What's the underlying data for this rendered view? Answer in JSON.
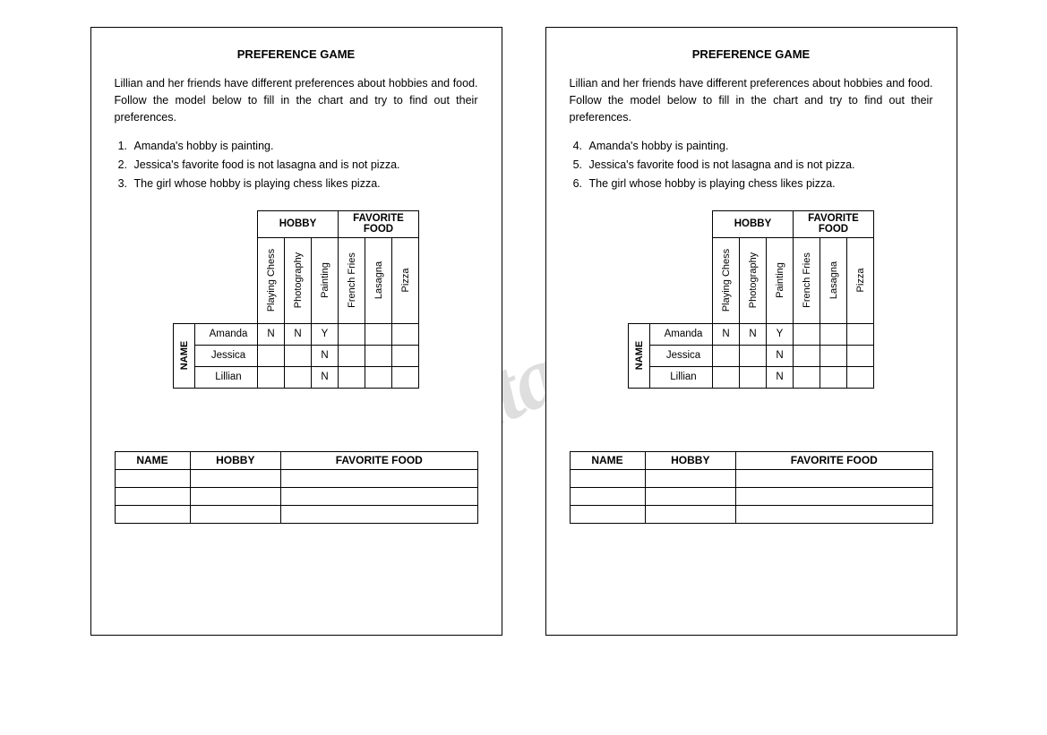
{
  "watermark": "ESLprintables.com",
  "cards": [
    {
      "title": "PREFERENCE GAME",
      "intro": "Lillian and her friends have different preferences about hobbies and food. Follow the model below to fill in the chart and try to find out their preferences.",
      "clue_start": 1,
      "clues": [
        "Amanda's hobby is painting.",
        "Jessica's favorite food is not lasagna and is not pizza.",
        "The girl whose hobby is playing chess likes pizza."
      ]
    },
    {
      "title": "PREFERENCE GAME",
      "intro": "Lillian and her friends have different preferences about hobbies and food. Follow the model below to fill in the chart and try to find out their preferences.",
      "clue_start": 4,
      "clues": [
        "Amanda's hobby is painting.",
        "Jessica's favorite food is not lasagna and is not pizza.",
        "The girl whose hobby is playing chess likes pizza."
      ]
    }
  ],
  "logic_grid": {
    "group_headers": [
      "HOBBY",
      "FAVORITE FOOD"
    ],
    "cols_hobby": [
      "Playing Chess",
      "Photography",
      "Painting"
    ],
    "cols_food": [
      "French Fries",
      "Lasagna",
      "Pizza"
    ],
    "side_header": "NAME",
    "rows": [
      "Amanda",
      "Jessica",
      "Lillian"
    ],
    "cells": [
      [
        "N",
        "N",
        "Y",
        "",
        "",
        ""
      ],
      [
        "",
        "",
        "N",
        "",
        "",
        ""
      ],
      [
        "",
        "",
        "N",
        "",
        "",
        ""
      ]
    ]
  },
  "answer_table": {
    "headers": [
      "NAME",
      "HOBBY",
      "FAVORITE FOOD"
    ],
    "empty_rows": 3
  },
  "colors": {
    "border": "#000000",
    "background": "#ffffff",
    "watermark": "rgba(0,0,0,0.13)"
  }
}
